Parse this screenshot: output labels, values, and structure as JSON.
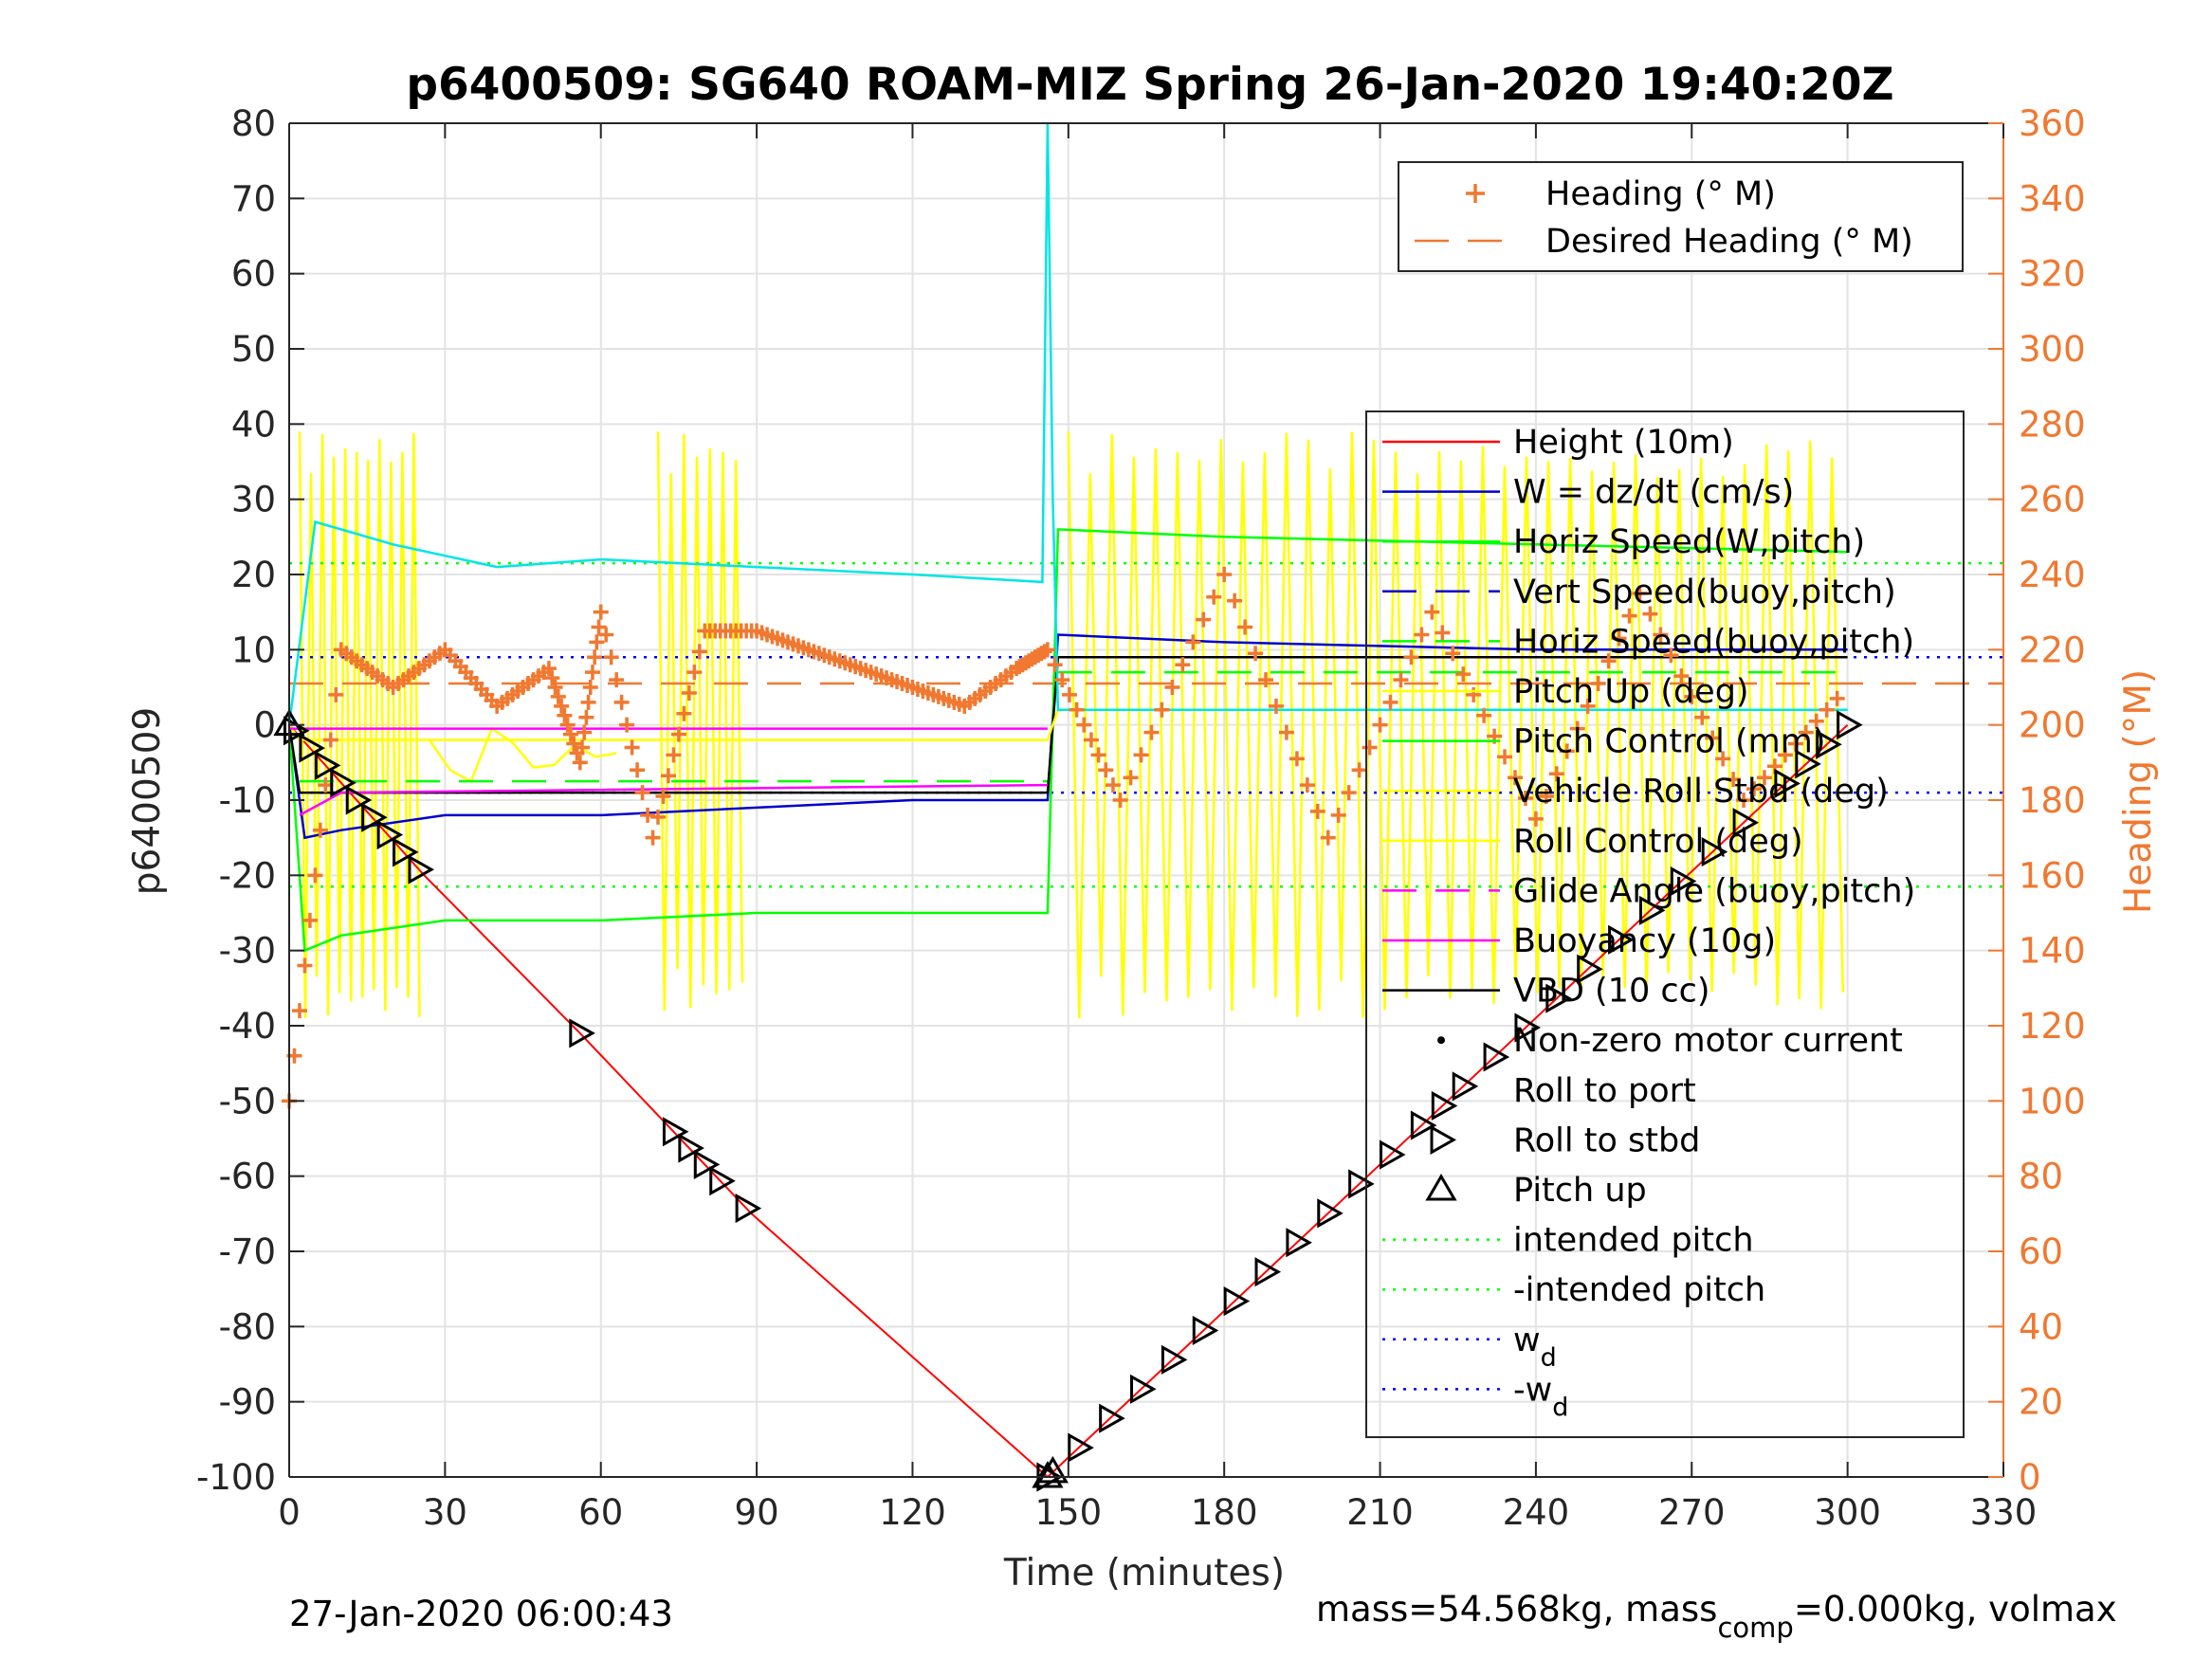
{
  "chart_data": {
    "type": "line",
    "title": "p6400509: SG640 ROAM-MIZ Spring 26-Jan-2020 19:40:20Z",
    "xlabel": "Time (minutes)",
    "ylabel_left": "p6400509",
    "ylabel_right": "Heading (°M)",
    "xlim": [
      0,
      330
    ],
    "ylim_left": [
      -100,
      80
    ],
    "ylim_right": [
      0,
      360
    ],
    "grid": true,
    "x_ticks": [
      0,
      30,
      60,
      90,
      120,
      150,
      180,
      210,
      240,
      270,
      300,
      330
    ],
    "y_ticks_left": [
      80,
      70,
      60,
      50,
      40,
      30,
      20,
      10,
      0,
      -10,
      -20,
      -30,
      -40,
      -50,
      -60,
      -70,
      -80,
      -90,
      -100
    ],
    "y_ticks_right": [
      360,
      340,
      320,
      300,
      280,
      260,
      240,
      220,
      200,
      180,
      160,
      140,
      120,
      100,
      80,
      60,
      40,
      20,
      0
    ],
    "legend_heading": [
      "Heading (° M)",
      "Desired Heading (° M)"
    ],
    "legend_main": [
      {
        "label": "Height (10m)",
        "style": "line",
        "color": "#ff0000"
      },
      {
        "label": "W = dz/dt (cm/s)",
        "style": "line",
        "color": "#0000cc"
      },
      {
        "label": "Horiz Speed(W,pitch)",
        "style": "line",
        "color": "#00ff00"
      },
      {
        "label": "Vert Speed(buoy,pitch)",
        "style": "dash",
        "color": "#0000cc"
      },
      {
        "label": "Horiz Speed(buoy,pitch)",
        "style": "dash",
        "color": "#00ff00"
      },
      {
        "label": "Pitch Up (deg)",
        "style": "line",
        "color": "#ffff00"
      },
      {
        "label": "Pitch Control (mm)",
        "style": "line",
        "color": "#00ff00"
      },
      {
        "label": "Vehicle Roll Stbd (deg)",
        "style": "line",
        "color": "#ffff00"
      },
      {
        "label": "Roll Control (deg)",
        "style": "line",
        "color": "#ffff00"
      },
      {
        "label": "Glide Angle (buoy,pitch)",
        "style": "dash",
        "color": "#ff00ff"
      },
      {
        "label": "Buoyancy (10g)",
        "style": "line",
        "color": "#ff00ff"
      },
      {
        "label": "VBD (10 cc)",
        "style": "line",
        "color": "#000000"
      },
      {
        "label": "Non-zero motor current",
        "style": "dot",
        "color": "#000000"
      },
      {
        "label": "Roll to port",
        "style": "none",
        "color": "#000000"
      },
      {
        "label": "Roll to stbd",
        "style": "tri-right",
        "color": "#000000"
      },
      {
        "label": "Pitch up",
        "style": "tri-up",
        "color": "#000000"
      },
      {
        "label": "intended pitch",
        "style": "dotted",
        "color": "#00ff00"
      },
      {
        "label": "-intended pitch",
        "style": "dotted",
        "color": "#00ff00"
      },
      {
        "label": "w",
        "sub": "d",
        "style": "dotted",
        "color": "#0000ff"
      },
      {
        "label": "-w",
        "sub": "d",
        "style": "dotted",
        "color": "#0000ff"
      }
    ],
    "series": [
      {
        "name": "Height (10m)",
        "color": "#ff0000",
        "x": [
          0,
          26,
          56,
          89,
          146,
          300
        ],
        "y": [
          0,
          -20,
          -41,
          -65,
          -100,
          0
        ]
      },
      {
        "name": "W = dz/dt (cm/s)",
        "color": "#0000cc",
        "x": [
          0,
          3,
          10,
          30,
          60,
          90,
          120,
          146,
          148,
          180,
          240,
          300
        ],
        "y": [
          0,
          -15,
          -14,
          -12,
          -12,
          -11,
          -10,
          -10,
          12,
          11,
          10,
          10
        ]
      },
      {
        "name": "Horiz Speed(W,pitch)",
        "color": "#00ff00",
        "x": [
          0,
          3,
          10,
          30,
          60,
          90,
          120,
          146,
          148,
          180,
          240,
          300
        ],
        "y": [
          0,
          -30,
          -28,
          -26,
          -26,
          -25,
          -25,
          -25,
          26,
          25,
          24,
          23
        ]
      },
      {
        "name": "VBD (10 cc)",
        "color": "#000000",
        "x": [
          0,
          2,
          146,
          148,
          300
        ],
        "y": [
          0,
          -9,
          -9,
          9,
          9
        ]
      },
      {
        "name": "Pitch Up (deg)",
        "color": "#ffff00",
        "x": [
          0,
          2,
          146,
          148,
          300
        ],
        "y": [
          0,
          -2,
          -2,
          2,
          2
        ]
      },
      {
        "name": "Glide Angle (buoy,pitch)",
        "color": "#ff00ff",
        "x": [
          0,
          146
        ],
        "y": [
          -0.5,
          -0.5
        ]
      },
      {
        "name": "Buoyancy (10g)",
        "color": "#ff00ff",
        "x": [
          2,
          10,
          146
        ],
        "y": [
          -12,
          -9,
          -8
        ]
      },
      {
        "name": "cyan (unlabeled)",
        "color": "#00e5e5",
        "x": [
          0,
          5,
          20,
          40,
          60,
          90,
          120,
          145,
          146,
          147,
          148,
          300
        ],
        "y": [
          0,
          27,
          24,
          21,
          22,
          21,
          20,
          19,
          80,
          30,
          2,
          2
        ]
      },
      {
        "name": "Heading (° M)",
        "axis": "right",
        "color": "#f07830",
        "x": [
          0,
          10,
          20,
          30,
          40,
          50,
          56,
          60,
          70,
          80,
          90,
          100,
          110,
          120,
          130,
          140,
          146,
          160,
          180,
          200,
          220,
          240,
          260,
          280,
          300
        ],
        "y": [
          100,
          220,
          210,
          220,
          205,
          215,
          190,
          230,
          170,
          225,
          225,
          220,
          215,
          210,
          205,
          215,
          220,
          180,
          240,
          170,
          230,
          175,
          235,
          180,
          210
        ]
      }
    ],
    "reference_lines": [
      {
        "name": "intended pitch",
        "y": 21.5,
        "color": "#00ff00"
      },
      {
        "name": "-intended pitch",
        "y": -21.5,
        "color": "#00ff00"
      },
      {
        "name": "w_d",
        "y": 9,
        "color": "#0000ff"
      },
      {
        "name": "-w_d",
        "y": -9,
        "color": "#0000ff"
      },
      {
        "name": "Desired Heading (° M)",
        "axis": "right",
        "y": 211,
        "color": "#f07830"
      }
    ],
    "markers": {
      "roll_to_stbd_x": [
        1,
        4,
        7,
        10,
        13,
        16,
        19,
        22,
        25,
        56,
        74,
        77,
        80,
        83,
        88,
        146,
        152,
        158,
        164,
        170,
        176,
        182,
        188,
        194,
        200,
        206,
        212,
        218,
        222,
        226,
        232,
        238,
        244,
        250,
        256,
        262,
        268,
        274,
        280,
        288,
        292,
        296,
        300
      ],
      "pitch_up_x": [
        0,
        146,
        147
      ]
    }
  },
  "footer": {
    "timestamp": "27-Jan-2020 06:00:43",
    "mass_text_1": "mass=54.568kg, mass",
    "mass_sub": "comp",
    "mass_text_2": "=0.000kg, volmax"
  }
}
